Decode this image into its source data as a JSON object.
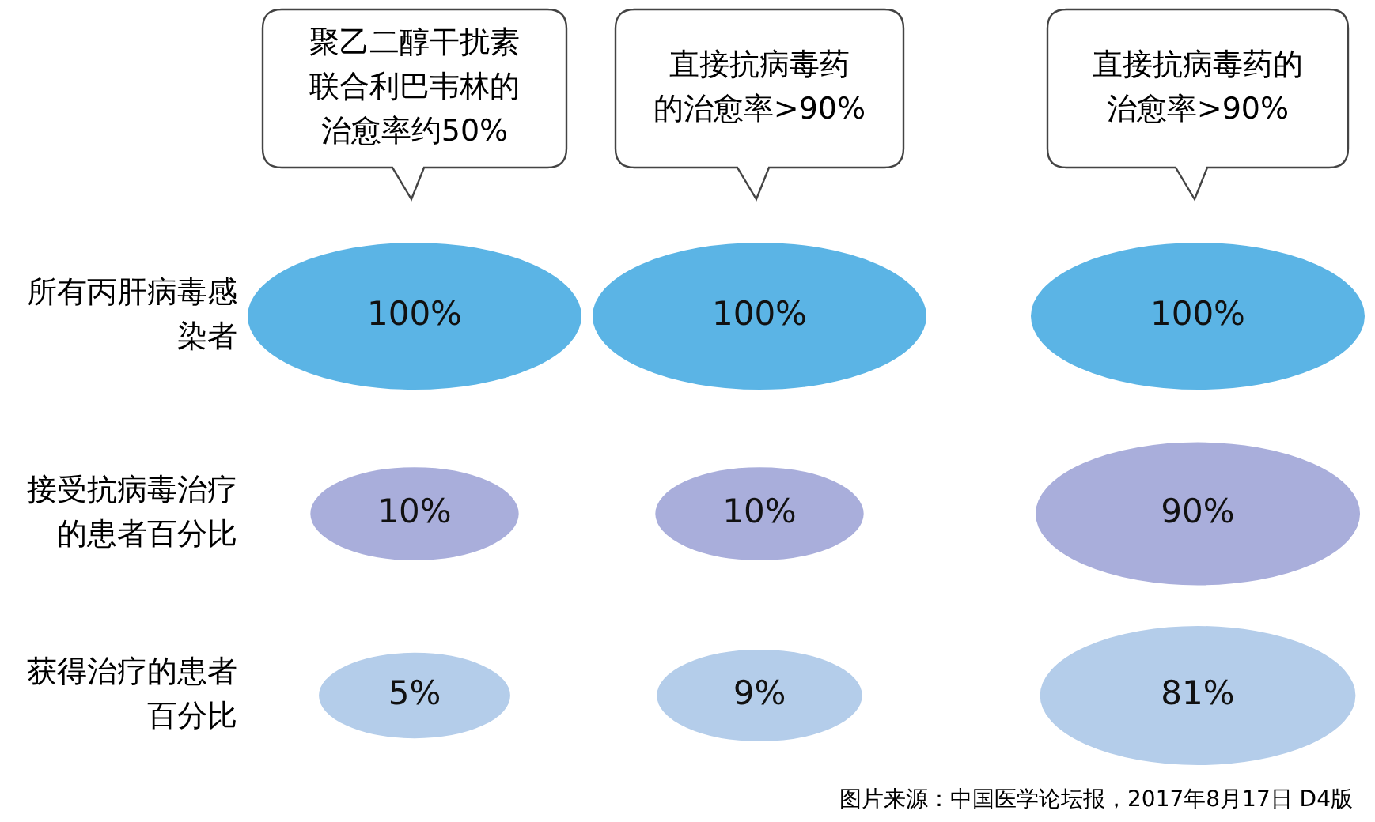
{
  "chart_data": {
    "type": "other",
    "categories": [
      "聚乙二醇干扰素联合利巴韦林的治愈率约50%",
      "直接抗病毒药的治愈率>90%",
      "直接抗病毒药的治愈率>90%"
    ],
    "series": [
      {
        "name": "所有丙肝病毒感染者",
        "color": "#5bb4e5",
        "values": [
          100,
          100,
          100
        ],
        "value_labels": [
          "100%",
          "100%",
          "100%"
        ]
      },
      {
        "name": "接受抗病毒治疗的患者百分比",
        "color": "#a9aedb",
        "values": [
          10,
          10,
          90
        ],
        "value_labels": [
          "10%",
          "10%",
          "90%"
        ]
      },
      {
        "name": "获得治疗的患者百分比",
        "color": "#b4cdea",
        "values": [
          5,
          9,
          81
        ],
        "value_labels": [
          "5%",
          "9%",
          "81%"
        ]
      }
    ],
    "annotations": [
      "图片来源：中国医学论坛报，2017年8月17日 D4版"
    ]
  }
}
